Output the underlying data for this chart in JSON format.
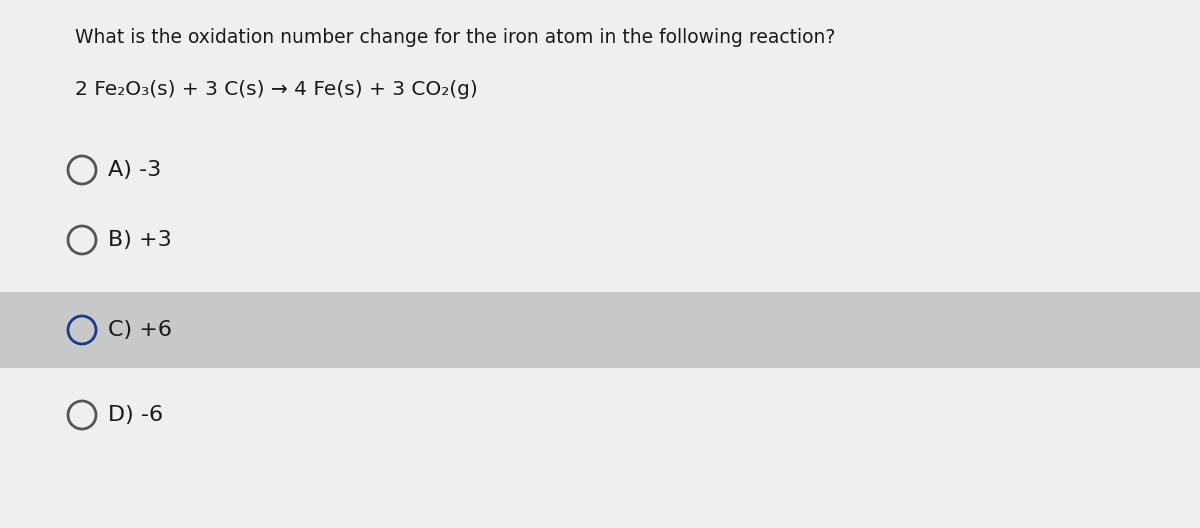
{
  "title": "What is the oxidation number change for the iron atom in the following reaction?",
  "reaction": "2 Fe₂O₃(s) + 3 C(s) → 4 Fe(s) + 3 CO₂(g)",
  "options": [
    {
      "label": "A) -3",
      "highlighted": false,
      "circle_color": "#555555"
    },
    {
      "label": "B) +3",
      "highlighted": false,
      "circle_color": "#555555"
    },
    {
      "label": "C) +6",
      "highlighted": true,
      "circle_color": "#1a3a8a"
    },
    {
      "label": "D) -6",
      "highlighted": false,
      "circle_color": "#555555"
    }
  ],
  "bg_color": "#f0efef",
  "highlight_color": "#c8c8c8",
  "text_color": "#1a1a1a",
  "title_fontsize": 13.5,
  "reaction_fontsize": 14.5,
  "option_fontsize": 16,
  "fig_width": 12.0,
  "fig_height": 5.28
}
